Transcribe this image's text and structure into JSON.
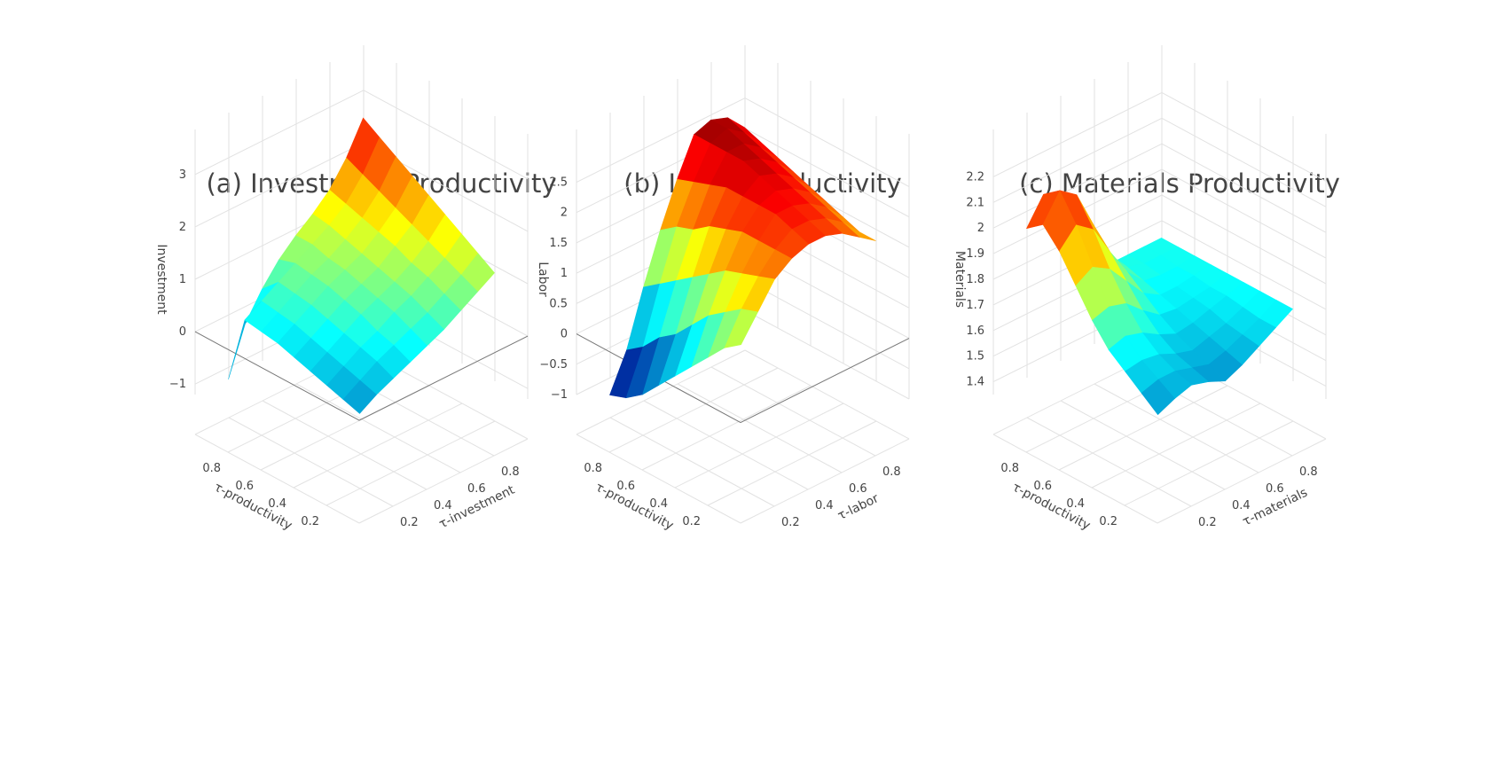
{
  "chart_data": [
    {
      "type": "surface",
      "title": "(a) Investment Productivity",
      "xlabel": "τ-productivity",
      "ylabel": "τ-investment",
      "zlabel": "Investment",
      "x_ticks": [
        "0.2",
        "0.4",
        "0.6",
        "0.8"
      ],
      "y_ticks": [
        "0.2",
        "0.4",
        "0.6",
        "0.8"
      ],
      "z_ticks": [
        "−1",
        "0",
        "1",
        "2",
        "3"
      ],
      "zlim": [
        -1.2,
        3.2
      ],
      "tau": [
        0.1,
        0.2,
        0.3,
        0.4,
        0.5,
        0.6,
        0.7,
        0.8,
        0.9
      ],
      "z": [
        [
          -0.2,
          0.0,
          0.15,
          0.3,
          0.45,
          0.6,
          0.8,
          1.0,
          1.2
        ],
        [
          -0.1,
          0.1,
          0.3,
          0.45,
          0.6,
          0.75,
          0.95,
          1.15,
          1.4
        ],
        [
          0.0,
          0.2,
          0.4,
          0.55,
          0.75,
          0.9,
          1.1,
          1.3,
          1.6
        ],
        [
          0.1,
          0.3,
          0.5,
          0.7,
          0.85,
          1.0,
          1.2,
          1.45,
          1.8
        ],
        [
          0.2,
          0.4,
          0.6,
          0.8,
          0.95,
          1.1,
          1.35,
          1.6,
          2.0
        ],
        [
          0.3,
          0.5,
          0.7,
          0.9,
          1.05,
          1.2,
          1.45,
          1.75,
          2.2
        ],
        [
          0.35,
          0.55,
          0.75,
          0.95,
          1.1,
          1.3,
          1.55,
          1.9,
          2.4
        ],
        [
          0.4,
          0.6,
          0.8,
          1.0,
          1.2,
          1.4,
          1.65,
          2.05,
          2.6
        ],
        [
          -0.9,
          0.0,
          0.5,
          0.9,
          1.2,
          1.45,
          1.75,
          2.2,
          2.8
        ]
      ]
    },
    {
      "type": "surface",
      "title": "(b) Labor Productivity",
      "xlabel": "τ-productivity",
      "ylabel": "τ-labor",
      "zlabel": "Labor",
      "x_ticks": [
        "0.2",
        "0.4",
        "0.6",
        "0.8"
      ],
      "y_ticks": [
        "0.2",
        "0.4",
        "0.6",
        "0.8"
      ],
      "z_ticks": [
        "−1",
        "−0.5",
        "0",
        "0.5",
        "1",
        "1.5",
        "2",
        "2.5"
      ],
      "zlim": [
        -1.0,
        2.8
      ],
      "tau": [
        0.1,
        0.2,
        0.3,
        0.4,
        0.5,
        0.6,
        0.7,
        0.8,
        0.9
      ],
      "z": [
        [
          1.0,
          1.4,
          1.8,
          2.0,
          2.1,
          2.1,
          2.0,
          1.8,
          1.6
        ],
        [
          0.8,
          1.3,
          1.7,
          2.0,
          2.2,
          2.2,
          2.1,
          1.9,
          1.6
        ],
        [
          0.5,
          1.1,
          1.6,
          2.0,
          2.3,
          2.3,
          2.2,
          2.0,
          1.7
        ],
        [
          0.2,
          0.9,
          1.5,
          2.0,
          2.3,
          2.4,
          2.3,
          2.1,
          1.8
        ],
        [
          -0.1,
          0.6,
          1.3,
          1.9,
          2.3,
          2.5,
          2.4,
          2.2,
          1.9
        ],
        [
          -0.4,
          0.3,
          1.1,
          1.8,
          2.3,
          2.6,
          2.5,
          2.3,
          2.0
        ],
        [
          -0.7,
          0.1,
          0.9,
          1.6,
          2.2,
          2.6,
          2.6,
          2.4,
          2.1
        ],
        [
          -0.9,
          -0.2,
          0.7,
          1.5,
          2.1,
          2.6,
          2.7,
          2.5,
          2.2
        ],
        [
          -1.0,
          -0.4,
          0.5,
          1.3,
          2.0,
          2.6,
          2.7,
          2.6,
          2.3
        ]
      ]
    },
    {
      "type": "surface",
      "title": "(c) Materials Productivity",
      "xlabel": "τ-productivity",
      "ylabel": "τ-materials",
      "zlabel": "Materials",
      "x_ticks": [
        "0.2",
        "0.4",
        "0.6",
        "0.8"
      ],
      "y_ticks": [
        "0.2",
        "0.4",
        "0.6",
        "0.8"
      ],
      "z_ticks": [
        "1.4",
        "1.5",
        "1.6",
        "1.7",
        "1.8",
        "1.9",
        "2",
        "2.1",
        "2.2"
      ],
      "zlim": [
        1.35,
        2.25
      ],
      "tau": [
        0.1,
        0.2,
        0.3,
        0.4,
        0.5,
        0.6,
        0.7,
        0.8,
        0.9
      ],
      "z": [
        [
          1.55,
          1.58,
          1.6,
          1.58,
          1.55,
          1.58,
          1.62,
          1.66,
          1.7
        ],
        [
          1.6,
          1.62,
          1.62,
          1.6,
          1.58,
          1.6,
          1.63,
          1.66,
          1.7
        ],
        [
          1.65,
          1.66,
          1.65,
          1.62,
          1.6,
          1.62,
          1.64,
          1.67,
          1.7
        ],
        [
          1.7,
          1.72,
          1.7,
          1.66,
          1.63,
          1.64,
          1.66,
          1.68,
          1.7
        ],
        [
          1.78,
          1.8,
          1.78,
          1.72,
          1.67,
          1.66,
          1.67,
          1.68,
          1.7
        ],
        [
          1.88,
          1.92,
          1.88,
          1.8,
          1.72,
          1.68,
          1.68,
          1.69,
          1.7
        ],
        [
          1.98,
          2.05,
          2.0,
          1.88,
          1.77,
          1.7,
          1.69,
          1.69,
          1.7
        ],
        [
          2.05,
          2.15,
          2.1,
          1.95,
          1.8,
          1.72,
          1.7,
          1.7,
          1.7
        ],
        [
          2.0,
          2.1,
          2.05,
          1.92,
          1.78,
          1.7,
          1.7,
          1.7,
          1.7
        ]
      ]
    }
  ]
}
